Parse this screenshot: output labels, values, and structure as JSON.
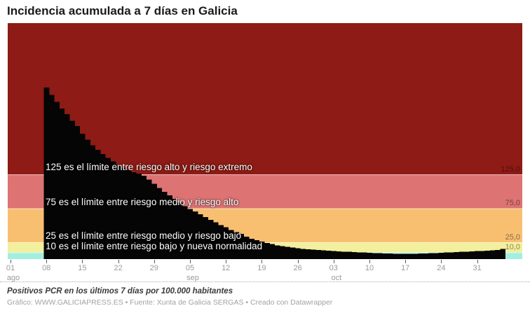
{
  "title": "Incidencia acumulada a 7 días en Galicia",
  "annotations": [
    "125 es el límite entre riesgo alto y riesgo extremo",
    "75 es el límite entre riesgo medio y riesgo alto",
    "25 es el límite entre riesgo medio y riesgo bajo",
    "10 es el límite entre riesgo bajo y nueva normalidad"
  ],
  "y_axis_labels": [
    "125,0",
    "75,0",
    "25,0",
    "10,0"
  ],
  "footer": {
    "note": "Positivos PCR en los últimos 7 días por 100.000 habitantes",
    "credit": "Gráfico: WWW.GALICIAPRESS.ES • Fuente: Xunta de Galicia SERGAS • Creado con Datawrapper"
  },
  "chart_data": {
    "type": "bar",
    "title": "Incidencia acumulada a 7 días en Galicia",
    "ylabel": "Positivos PCR en los últimos 7 días por 100.000 habitantes",
    "ylim": [
      0,
      348
    ],
    "grid": false,
    "legend": false,
    "bar_color": "#050505",
    "band_edge_color": "rgba(255,255,255,0.55)",
    "bands": [
      {
        "name": "riesgo extremo",
        "from": 125,
        "to": 348,
        "color": "#8e1b15"
      },
      {
        "name": "riesgo alto",
        "from": 75,
        "to": 125,
        "color": "#dd7373"
      },
      {
        "name": "riesgo medio",
        "from": 25,
        "to": 75,
        "color": "#f8bf71"
      },
      {
        "name": "riesgo bajo",
        "from": 10,
        "to": 25,
        "color": "#f2ef9d"
      },
      {
        "name": "nueva normalidad",
        "from": 0,
        "to": 10,
        "color": "#a2efe0"
      }
    ],
    "thresholds": [
      125,
      75,
      25,
      10
    ],
    "x_axis_start": "01 ago",
    "first_bar_date": "08 ago",
    "last_bar_date": "05 nov",
    "start_day_offset": 7,
    "x_ticks": [
      {
        "day": 0,
        "label": "01",
        "month": "ago"
      },
      {
        "day": 7,
        "label": "08"
      },
      {
        "day": 14,
        "label": "15"
      },
      {
        "day": 21,
        "label": "22"
      },
      {
        "day": 28,
        "label": "29"
      },
      {
        "day": 35,
        "label": "05",
        "month": "sep"
      },
      {
        "day": 42,
        "label": "12"
      },
      {
        "day": 49,
        "label": "19"
      },
      {
        "day": 56,
        "label": "26"
      },
      {
        "day": 63,
        "label": "03",
        "month": "oct"
      },
      {
        "day": 70,
        "label": "10"
      },
      {
        "day": 77,
        "label": "17"
      },
      {
        "day": 84,
        "label": "24"
      },
      {
        "day": 91,
        "label": "31"
      }
    ],
    "values": [
      253,
      242,
      232,
      222,
      214,
      204,
      196,
      185,
      176,
      168,
      161,
      155,
      149,
      144,
      139,
      134,
      131,
      128,
      126,
      123,
      117,
      111,
      105,
      99,
      94,
      89,
      83,
      78,
      74,
      70,
      66,
      62,
      58,
      54,
      50,
      47,
      43,
      40,
      37,
      33,
      30,
      28,
      26,
      24,
      22,
      20,
      19,
      18,
      17,
      16,
      15,
      14.5,
      14,
      13.5,
      13,
      12.5,
      12,
      11.5,
      11,
      11,
      10.5,
      10,
      10,
      9.5,
      9,
      9,
      8.5,
      8.5,
      8,
      8,
      8,
      8,
      8,
      8.5,
      8.5,
      9,
      9,
      9.5,
      10,
      10,
      10.5,
      11,
      11,
      11.5,
      12,
      12,
      12.5,
      13,
      13.5,
      15
    ]
  }
}
